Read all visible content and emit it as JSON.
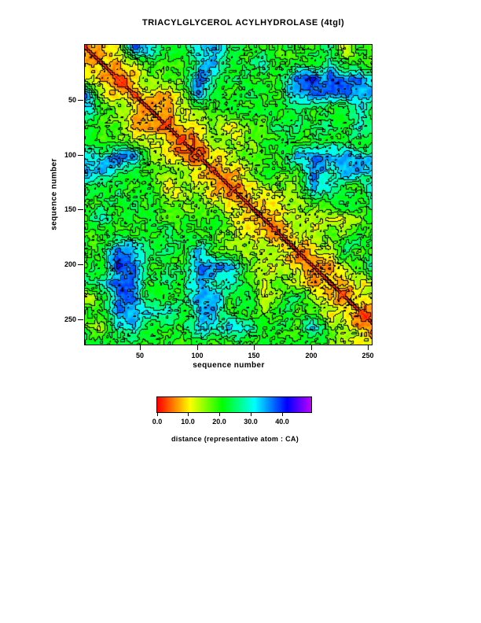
{
  "title": "TRIACYLGLYCEROL ACYLHYDROLASE (4tgl)",
  "axes": {
    "x": {
      "label": "sequence number",
      "ticks": [
        50,
        100,
        150,
        200,
        250
      ]
    },
    "y": {
      "label": "sequence number",
      "ticks": [
        50,
        100,
        150,
        200,
        250
      ]
    }
  },
  "colorbar": {
    "label": "distance (representative atom : CA)",
    "tick_labels": [
      "0.0",
      "10.0",
      "20.0",
      "30.0",
      "40.0"
    ],
    "tick_values": [
      0,
      10,
      20,
      30,
      40
    ],
    "vmin": 0,
    "vmax": 49,
    "gradient": [
      "#ff0000",
      "#ff9900",
      "#ffff00",
      "#00ff00",
      "#00ffff",
      "#0000ff",
      "#7700ff"
    ]
  },
  "chart_data": {
    "type": "heatmap",
    "title": "TRIACYLGLYCEROL ACYLHYDROLASE (4tgl)",
    "xlabel": "sequence number",
    "ylabel": "sequence number",
    "x_range": [
      1,
      253
    ],
    "y_range": [
      1,
      272
    ],
    "x_ticks": [
      50,
      100,
      150,
      200,
      250
    ],
    "y_ticks": [
      50,
      100,
      150,
      200,
      250
    ],
    "value_label": "distance (representative atom : CA)",
    "value_units": "angstrom",
    "value_range": [
      0,
      49
    ],
    "contour_interval": 4,
    "contour_color": "#000000",
    "colormap": "rainbow: red=0, yellow=10, green=20, cyan=30, blue=40, violet=49",
    "symmetric": true,
    "diagonal": "zero distance (red band) running top-left to bottom-right",
    "coarse_grid_blocks": 20,
    "coarse_grid_span": [
      1,
      272
    ],
    "coarse_matrix": [
      [
        5,
        9,
        13,
        36,
        34,
        24,
        26,
        30,
        34,
        22,
        22,
        21,
        21,
        21,
        22,
        26,
        12,
        21,
        21,
        21
      ],
      [
        9,
        5,
        9,
        13,
        20,
        18,
        19,
        30,
        33,
        21,
        21,
        27,
        21,
        21,
        21,
        28,
        20,
        21,
        14,
        21
      ],
      [
        13,
        9,
        5,
        9,
        14,
        16,
        18,
        38,
        28,
        24,
        24,
        21,
        21,
        38,
        38,
        38,
        37,
        36,
        30,
        21
      ],
      [
        36,
        13,
        9,
        5,
        9,
        10,
        16,
        33,
        20,
        21,
        21,
        21,
        21,
        35,
        38,
        36,
        36,
        36,
        34,
        21
      ],
      [
        34,
        20,
        14,
        9,
        5,
        9,
        13,
        16,
        18,
        24,
        20,
        21,
        21,
        24,
        21,
        21,
        21,
        34,
        21,
        21
      ],
      [
        24,
        18,
        16,
        10,
        9,
        5,
        9,
        13,
        16,
        11,
        19,
        20,
        21,
        26,
        21,
        28,
        21,
        31,
        21,
        21
      ],
      [
        26,
        19,
        18,
        16,
        13,
        9,
        5,
        9,
        13,
        16,
        13,
        19,
        25,
        21,
        21,
        21,
        21,
        21,
        21,
        21
      ],
      [
        30,
        30,
        38,
        33,
        16,
        13,
        9,
        5,
        9,
        13,
        16,
        18,
        20,
        32,
        36,
        36,
        35,
        34,
        32,
        21
      ],
      [
        34,
        33,
        28,
        20,
        18,
        16,
        13,
        9,
        5,
        9,
        13,
        23,
        18,
        20,
        33,
        30,
        33,
        32,
        30,
        21
      ],
      [
        22,
        21,
        24,
        21,
        24,
        11,
        16,
        13,
        9,
        5,
        9,
        13,
        16,
        18,
        34,
        32,
        21,
        21,
        33,
        21
      ],
      [
        22,
        21,
        24,
        21,
        20,
        19,
        13,
        16,
        13,
        9,
        5,
        9,
        13,
        16,
        18,
        21,
        26,
        21,
        31,
        21
      ],
      [
        21,
        27,
        21,
        21,
        21,
        20,
        19,
        18,
        23,
        13,
        9,
        5,
        9,
        13,
        14,
        13,
        14,
        18,
        21,
        21
      ],
      [
        21,
        21,
        21,
        21,
        21,
        21,
        25,
        20,
        18,
        16,
        13,
        9,
        5,
        9,
        13,
        16,
        18,
        24,
        20,
        21
      ],
      [
        21,
        21,
        38,
        35,
        24,
        26,
        21,
        32,
        20,
        18,
        16,
        13,
        9,
        5,
        9,
        13,
        28,
        18,
        19,
        21
      ],
      [
        22,
        21,
        38,
        38,
        21,
        21,
        21,
        36,
        33,
        34,
        18,
        14,
        13,
        9,
        5,
        9,
        13,
        16,
        34,
        21
      ],
      [
        26,
        28,
        38,
        36,
        21,
        28,
        21,
        36,
        30,
        32,
        21,
        13,
        16,
        13,
        9,
        5,
        8,
        11,
        18,
        19
      ],
      [
        12,
        20,
        37,
        36,
        21,
        21,
        21,
        35,
        33,
        21,
        26,
        14,
        18,
        28,
        13,
        8,
        5,
        9,
        13,
        16
      ],
      [
        21,
        21,
        36,
        36,
        34,
        31,
        21,
        34,
        32,
        21,
        21,
        18,
        24,
        18,
        16,
        11,
        9,
        5,
        9,
        13
      ],
      [
        21,
        14,
        30,
        34,
        21,
        21,
        21,
        32,
        30,
        33,
        31,
        21,
        20,
        19,
        34,
        18,
        13,
        9,
        5,
        9
      ],
      [
        21,
        21,
        21,
        21,
        21,
        21,
        21,
        21,
        21,
        21,
        21,
        21,
        21,
        21,
        21,
        19,
        16,
        13,
        9,
        5
      ]
    ]
  }
}
